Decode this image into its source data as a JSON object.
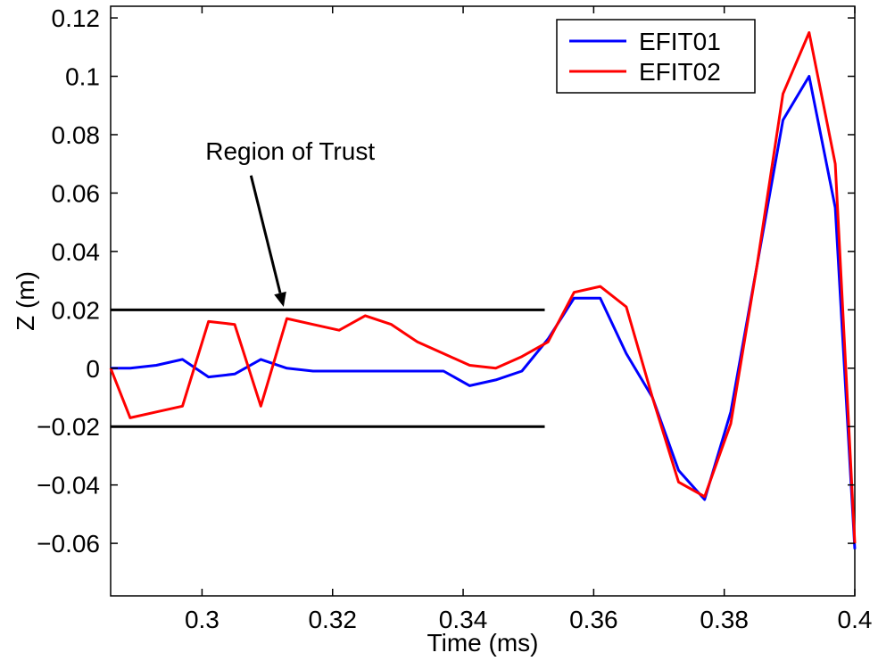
{
  "chart_data": {
    "type": "line",
    "title": "",
    "xlabel": "Time (ms)",
    "ylabel": "Z (m)",
    "xlim": [
      0.286,
      0.4
    ],
    "ylim": [
      -0.078,
      0.124
    ],
    "x_ticks": [
      0.3,
      0.32,
      0.34,
      0.36,
      0.38,
      0.4
    ],
    "x_tick_labels": [
      "0.3",
      "0.32",
      "0.34",
      "0.36",
      "0.38",
      "0.4"
    ],
    "y_ticks": [
      -0.06,
      -0.04,
      -0.02,
      0,
      0.02,
      0.04,
      0.06,
      0.08,
      0.1,
      0.12
    ],
    "y_tick_labels": [
      "−0.06",
      "−0.04",
      "−0.02",
      "0",
      "0.02",
      "0.04",
      "0.06",
      "0.08",
      "0.1",
      "0.12"
    ],
    "grid": false,
    "legend_position": "top-right",
    "series": [
      {
        "name": "EFIT01",
        "color": "#0000ff",
        "x": [
          0.286,
          0.289,
          0.293,
          0.297,
          0.301,
          0.305,
          0.309,
          0.313,
          0.317,
          0.321,
          0.325,
          0.329,
          0.333,
          0.337,
          0.341,
          0.345,
          0.349,
          0.353,
          0.357,
          0.361,
          0.365,
          0.369,
          0.373,
          0.377,
          0.381,
          0.385,
          0.389,
          0.393,
          0.397,
          0.4
        ],
        "y": [
          0.0,
          0.0,
          0.001,
          0.003,
          -0.003,
          -0.002,
          0.003,
          0.0,
          -0.001,
          -0.001,
          -0.001,
          -0.001,
          -0.001,
          -0.001,
          -0.006,
          -0.004,
          -0.001,
          0.01,
          0.024,
          0.024,
          0.005,
          -0.01,
          -0.035,
          -0.045,
          -0.015,
          0.035,
          0.085,
          0.1,
          0.055,
          -0.062
        ]
      },
      {
        "name": "EFIT02",
        "color": "#ff0000",
        "x": [
          0.286,
          0.289,
          0.293,
          0.297,
          0.301,
          0.305,
          0.309,
          0.313,
          0.317,
          0.321,
          0.325,
          0.329,
          0.333,
          0.337,
          0.341,
          0.345,
          0.349,
          0.353,
          0.357,
          0.361,
          0.365,
          0.369,
          0.373,
          0.377,
          0.381,
          0.385,
          0.389,
          0.393,
          0.397,
          0.4
        ],
        "y": [
          0.0,
          -0.017,
          -0.015,
          -0.013,
          0.016,
          0.015,
          -0.013,
          0.017,
          0.015,
          0.013,
          0.018,
          0.015,
          0.009,
          0.005,
          0.001,
          0.0,
          0.004,
          0.009,
          0.026,
          0.028,
          0.021,
          -0.01,
          -0.039,
          -0.044,
          -0.019,
          0.035,
          0.094,
          0.115,
          0.07,
          -0.06
        ]
      }
    ],
    "reference_lines": [
      {
        "y": 0.02,
        "x_start": 0.286,
        "x_end": 0.3525,
        "color": "#000000"
      },
      {
        "y": -0.02,
        "x_start": 0.286,
        "x_end": 0.3525,
        "color": "#000000"
      }
    ],
    "annotations": [
      {
        "text": "Region of Trust",
        "text_x": 0.3135,
        "text_y": 0.0715,
        "arrow_from": [
          0.3075,
          0.066
        ],
        "arrow_to": [
          0.3125,
          0.021
        ]
      }
    ]
  }
}
